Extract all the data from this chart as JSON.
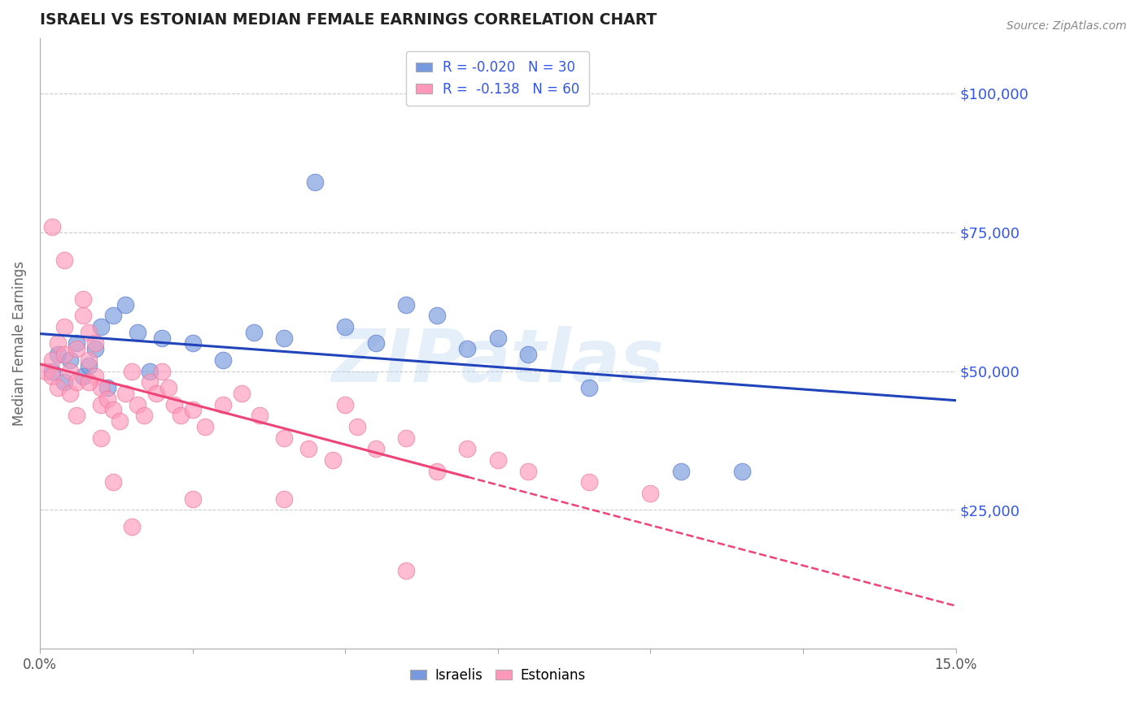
{
  "title": "ISRAELI VS ESTONIAN MEDIAN FEMALE EARNINGS CORRELATION CHART",
  "source": "Source: ZipAtlas.com",
  "ylabel": "Median Female Earnings",
  "xlim": [
    0.0,
    0.15
  ],
  "ylim": [
    0,
    110000
  ],
  "yticks": [
    25000,
    50000,
    75000,
    100000
  ],
  "ytick_labels": [
    "$25,000",
    "$50,000",
    "$75,000",
    "$100,000"
  ],
  "watermark": "ZIPatlas",
  "israeli_color": "#7799dd",
  "estonian_color": "#ff99bb",
  "israeli_edge_color": "#5577cc",
  "estonian_edge_color": "#ee7799",
  "title_color": "#222222",
  "axis_label_color": "#666666",
  "right_tick_color": "#3355ee",
  "grid_color": "#cccccc",
  "trend_israeli_color": "#2244bb",
  "trend_estonian_color": "#ee4477",
  "israeli_R": -0.02,
  "israeli_N": 30,
  "estonian_R": -0.138,
  "estonian_N": 60,
  "isr_x": [
    0.002,
    0.003,
    0.004,
    0.005,
    0.006,
    0.007,
    0.008,
    0.009,
    0.01,
    0.011,
    0.012,
    0.014,
    0.016,
    0.018,
    0.02,
    0.025,
    0.03,
    0.035,
    0.04,
    0.045,
    0.05,
    0.055,
    0.06,
    0.065,
    0.07,
    0.075,
    0.08,
    0.09,
    0.105,
    0.115
  ],
  "isr_y": [
    50000,
    53000,
    48000,
    52000,
    55000,
    49000,
    51000,
    54000,
    58000,
    47000,
    60000,
    62000,
    57000,
    50000,
    56000,
    55000,
    52000,
    57000,
    56000,
    84000,
    58000,
    55000,
    62000,
    60000,
    54000,
    56000,
    53000,
    47000,
    32000,
    32000
  ],
  "est_x": [
    0.001,
    0.002,
    0.002,
    0.003,
    0.003,
    0.004,
    0.004,
    0.005,
    0.005,
    0.006,
    0.006,
    0.007,
    0.007,
    0.008,
    0.008,
    0.009,
    0.009,
    0.01,
    0.01,
    0.011,
    0.012,
    0.013,
    0.014,
    0.015,
    0.016,
    0.017,
    0.018,
    0.019,
    0.02,
    0.021,
    0.022,
    0.023,
    0.025,
    0.027,
    0.03,
    0.033,
    0.036,
    0.04,
    0.044,
    0.048,
    0.05,
    0.052,
    0.055,
    0.06,
    0.065,
    0.07,
    0.075,
    0.08,
    0.09,
    0.1,
    0.002,
    0.004,
    0.006,
    0.008,
    0.01,
    0.012,
    0.015,
    0.025,
    0.04,
    0.06
  ],
  "est_y": [
    50000,
    49000,
    52000,
    47000,
    55000,
    58000,
    53000,
    46000,
    50000,
    54000,
    48000,
    60000,
    63000,
    57000,
    52000,
    55000,
    49000,
    44000,
    47000,
    45000,
    43000,
    41000,
    46000,
    50000,
    44000,
    42000,
    48000,
    46000,
    50000,
    47000,
    44000,
    42000,
    43000,
    40000,
    44000,
    46000,
    42000,
    38000,
    36000,
    34000,
    44000,
    40000,
    36000,
    38000,
    32000,
    36000,
    34000,
    32000,
    30000,
    28000,
    76000,
    70000,
    42000,
    48000,
    38000,
    30000,
    22000,
    27000,
    27000,
    14000
  ]
}
